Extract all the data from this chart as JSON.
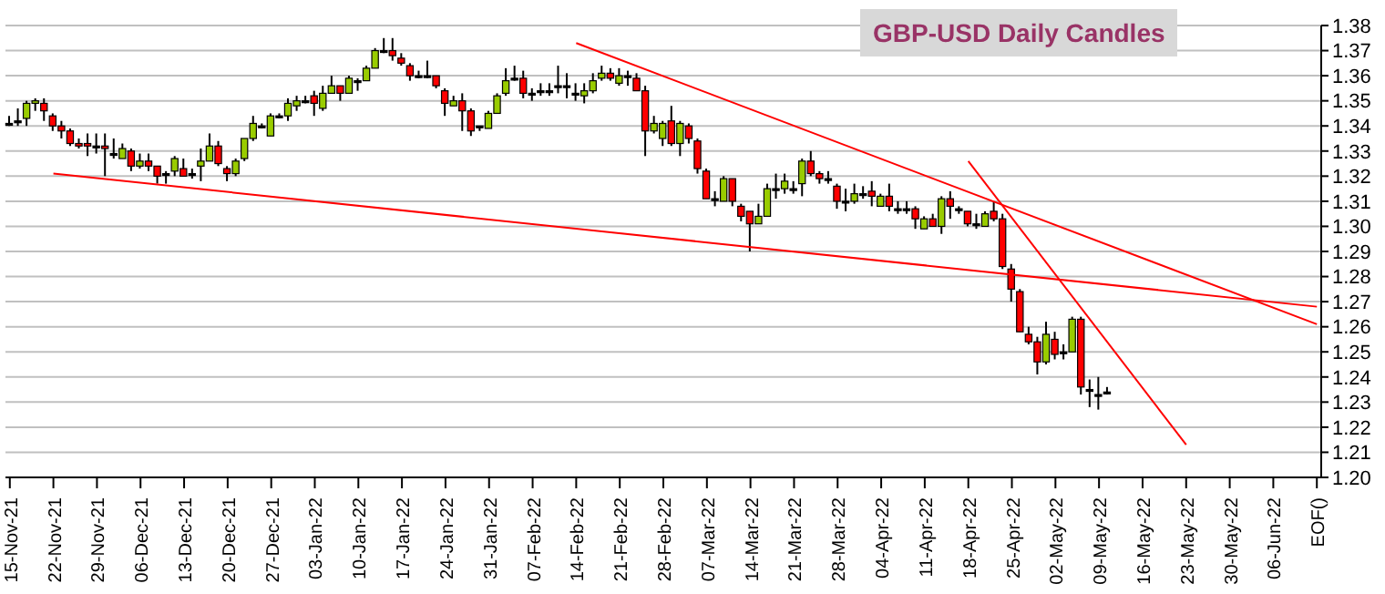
{
  "chart_data": {
    "type": "candlestick",
    "title": "GBP-USD Daily Candles",
    "categories": [
      "15-Nov-21",
      null,
      null,
      null,
      null,
      "22-Nov-21",
      null,
      null,
      null,
      null,
      "29-Nov-21",
      null,
      null,
      null,
      null,
      "06-Dec-21",
      null,
      null,
      null,
      null,
      "13-Dec-21",
      null,
      null,
      null,
      null,
      "20-Dec-21",
      null,
      null,
      null,
      null,
      "27-Dec-21",
      null,
      null,
      null,
      null,
      "03-Jan-22",
      null,
      null,
      null,
      null,
      "10-Jan-22",
      null,
      null,
      null,
      null,
      "17-Jan-22",
      null,
      null,
      null,
      null,
      "24-Jan-22",
      null,
      null,
      null,
      null,
      "31-Jan-22",
      null,
      null,
      null,
      null,
      "07-Feb-22",
      null,
      null,
      null,
      null,
      "14-Feb-22",
      null,
      null,
      null,
      null,
      "21-Feb-22",
      null,
      null,
      null,
      null,
      "28-Feb-22",
      null,
      null,
      null,
      null,
      "07-Mar-22",
      null,
      null,
      null,
      null,
      "14-Mar-22",
      null,
      null,
      null,
      null,
      "21-Mar-22",
      null,
      null,
      null,
      null,
      "28-Mar-22",
      null,
      null,
      null,
      null,
      "04-Apr-22",
      null,
      null,
      null,
      null,
      "11-Apr-22",
      null,
      null,
      null,
      null,
      "18-Apr-22",
      null,
      null,
      null,
      null,
      "25-Apr-22",
      null,
      null,
      null,
      null,
      "02-May-22",
      null,
      null,
      null,
      null,
      "09-May-22",
      null,
      null,
      null,
      null,
      "16-May-22",
      null,
      null,
      null,
      null,
      "23-May-22",
      null,
      null,
      null,
      null,
      "30-May-22",
      null,
      null,
      null,
      null,
      "06-Jun-22",
      null,
      null,
      null,
      null,
      "EOF()"
    ],
    "ohlc": [
      [
        1.341,
        1.344,
        1.34,
        1.341
      ],
      [
        1.342,
        1.347,
        1.34,
        1.342
      ],
      [
        1.343,
        1.35,
        1.34,
        1.349
      ],
      [
        1.349,
        1.351,
        1.346,
        1.35
      ],
      [
        1.349,
        1.351,
        1.342,
        1.346
      ],
      [
        1.344,
        1.345,
        1.338,
        1.34
      ],
      [
        1.34,
        1.342,
        1.335,
        1.338
      ],
      [
        1.338,
        1.339,
        1.332,
        1.333
      ],
      [
        1.333,
        1.335,
        1.331,
        1.332
      ],
      [
        1.333,
        1.337,
        1.328,
        1.332
      ],
      [
        1.332,
        1.337,
        1.329,
        1.332
      ],
      [
        1.332,
        1.337,
        1.32,
        1.331
      ],
      [
        1.329,
        1.335,
        1.327,
        1.329
      ],
      [
        1.327,
        1.333,
        1.327,
        1.331
      ],
      [
        1.33,
        1.331,
        1.322,
        1.324
      ],
      [
        1.324,
        1.329,
        1.323,
        1.326
      ],
      [
        1.326,
        1.329,
        1.322,
        1.324
      ],
      [
        1.324,
        1.324,
        1.317,
        1.32
      ],
      [
        1.321,
        1.322,
        1.317,
        1.321
      ],
      [
        1.322,
        1.328,
        1.32,
        1.327
      ],
      [
        1.323,
        1.327,
        1.32,
        1.32
      ],
      [
        1.321,
        1.323,
        1.319,
        1.321
      ],
      [
        1.324,
        1.331,
        1.318,
        1.326
      ],
      [
        1.326,
        1.337,
        1.326,
        1.332
      ],
      [
        1.332,
        1.334,
        1.324,
        1.325
      ],
      [
        1.323,
        1.324,
        1.318,
        1.321
      ],
      [
        1.321,
        1.327,
        1.32,
        1.326
      ],
      [
        1.327,
        1.335,
        1.326,
        1.335
      ],
      [
        1.335,
        1.344,
        1.334,
        1.341
      ],
      [
        1.34,
        1.341,
        1.339,
        1.34
      ],
      [
        1.336,
        1.345,
        1.336,
        1.344
      ],
      [
        1.344,
        1.345,
        1.343,
        1.344
      ],
      [
        1.344,
        1.351,
        1.342,
        1.349
      ],
      [
        1.348,
        1.352,
        1.346,
        1.35
      ],
      [
        1.35,
        1.352,
        1.349,
        1.35
      ],
      [
        1.352,
        1.354,
        1.344,
        1.349
      ],
      [
        1.347,
        1.356,
        1.346,
        1.353
      ],
      [
        1.353,
        1.36,
        1.353,
        1.356
      ],
      [
        1.356,
        1.356,
        1.35,
        1.353
      ],
      [
        1.353,
        1.36,
        1.353,
        1.359
      ],
      [
        1.358,
        1.359,
        1.354,
        1.358
      ],
      [
        1.358,
        1.364,
        1.358,
        1.363
      ],
      [
        1.363,
        1.371,
        1.363,
        1.37
      ],
      [
        1.37,
        1.375,
        1.369,
        1.37
      ],
      [
        1.37,
        1.375,
        1.366,
        1.368
      ],
      [
        1.367,
        1.369,
        1.364,
        1.365
      ],
      [
        1.364,
        1.365,
        1.358,
        1.36
      ],
      [
        1.36,
        1.362,
        1.359,
        1.36
      ],
      [
        1.36,
        1.366,
        1.359,
        1.36
      ],
      [
        1.36,
        1.36,
        1.355,
        1.356
      ],
      [
        1.354,
        1.355,
        1.344,
        1.349
      ],
      [
        1.348,
        1.352,
        1.348,
        1.35
      ],
      [
        1.35,
        1.353,
        1.338,
        1.346
      ],
      [
        1.346,
        1.347,
        1.336,
        1.338
      ],
      [
        1.34,
        1.34,
        1.338,
        1.34
      ],
      [
        1.339,
        1.346,
        1.339,
        1.345
      ],
      [
        1.345,
        1.353,
        1.345,
        1.352
      ],
      [
        1.353,
        1.363,
        1.352,
        1.358
      ],
      [
        1.359,
        1.364,
        1.358,
        1.359
      ],
      [
        1.359,
        1.362,
        1.351,
        1.353
      ],
      [
        1.353,
        1.355,
        1.35,
        1.353
      ],
      [
        1.354,
        1.357,
        1.352,
        1.354
      ],
      [
        1.354,
        1.357,
        1.352,
        1.354
      ],
      [
        1.356,
        1.364,
        1.353,
        1.356
      ],
      [
        1.356,
        1.361,
        1.351,
        1.356
      ],
      [
        1.353,
        1.357,
        1.35,
        1.353
      ],
      [
        1.352,
        1.357,
        1.349,
        1.354
      ],
      [
        1.354,
        1.361,
        1.353,
        1.358
      ],
      [
        1.359,
        1.364,
        1.358,
        1.361
      ],
      [
        1.361,
        1.363,
        1.358,
        1.359
      ],
      [
        1.357,
        1.363,
        1.356,
        1.36
      ],
      [
        1.36,
        1.362,
        1.356,
        1.36
      ],
      [
        1.359,
        1.361,
        1.354,
        1.354
      ],
      [
        1.354,
        1.356,
        1.328,
        1.338
      ],
      [
        1.338,
        1.344,
        1.337,
        1.341
      ],
      [
        1.335,
        1.342,
        1.332,
        1.341
      ],
      [
        1.342,
        1.348,
        1.332,
        1.333
      ],
      [
        1.333,
        1.342,
        1.328,
        1.341
      ],
      [
        1.34,
        1.341,
        1.333,
        1.335
      ],
      [
        1.334,
        1.335,
        1.321,
        1.323
      ],
      [
        1.322,
        1.323,
        1.311,
        1.311
      ],
      [
        1.311,
        1.314,
        1.308,
        1.311
      ],
      [
        1.31,
        1.32,
        1.31,
        1.319
      ],
      [
        1.319,
        1.319,
        1.308,
        1.31
      ],
      [
        1.308,
        1.309,
        1.302,
        1.304
      ],
      [
        1.306,
        1.306,
        1.29,
        1.301
      ],
      [
        1.301,
        1.309,
        1.301,
        1.304
      ],
      [
        1.304,
        1.317,
        1.304,
        1.315
      ],
      [
        1.315,
        1.321,
        1.311,
        1.315
      ],
      [
        1.315,
        1.321,
        1.313,
        1.318
      ],
      [
        1.315,
        1.318,
        1.313,
        1.315
      ],
      [
        1.317,
        1.327,
        1.312,
        1.326
      ],
      [
        1.326,
        1.33,
        1.32,
        1.321
      ],
      [
        1.321,
        1.322,
        1.317,
        1.319
      ],
      [
        1.319,
        1.322,
        1.317,
        1.319
      ],
      [
        1.316,
        1.317,
        1.307,
        1.31
      ],
      [
        1.31,
        1.315,
        1.306,
        1.31
      ],
      [
        1.31,
        1.317,
        1.309,
        1.313
      ],
      [
        1.313,
        1.316,
        1.311,
        1.313
      ],
      [
        1.314,
        1.318,
        1.308,
        1.312
      ],
      [
        1.308,
        1.313,
        1.308,
        1.312
      ],
      [
        1.312,
        1.317,
        1.306,
        1.308
      ],
      [
        1.307,
        1.31,
        1.305,
        1.307
      ],
      [
        1.307,
        1.31,
        1.305,
        1.307
      ],
      [
        1.307,
        1.308,
        1.299,
        1.303
      ],
      [
        1.299,
        1.304,
        1.299,
        1.303
      ],
      [
        1.303,
        1.305,
        1.3,
        1.3
      ],
      [
        1.3,
        1.312,
        1.297,
        1.311
      ],
      [
        1.311,
        1.314,
        1.303,
        1.308
      ],
      [
        1.307,
        1.308,
        1.305,
        1.307
      ],
      [
        1.306,
        1.306,
        1.3,
        1.301
      ],
      [
        1.301,
        1.305,
        1.299,
        1.301
      ],
      [
        1.3,
        1.306,
        1.3,
        1.305
      ],
      [
        1.306,
        1.31,
        1.302,
        1.303
      ],
      [
        1.303,
        1.305,
        1.283,
        1.284
      ],
      [
        1.283,
        1.285,
        1.27,
        1.275
      ],
      [
        1.274,
        1.275,
        1.258,
        1.258
      ],
      [
        1.257,
        1.26,
        1.253,
        1.254
      ],
      [
        1.254,
        1.256,
        1.241,
        1.246
      ],
      [
        1.246,
        1.262,
        1.245,
        1.257
      ],
      [
        1.255,
        1.258,
        1.247,
        1.249
      ],
      [
        1.25,
        1.253,
        1.247,
        1.25
      ],
      [
        1.25,
        1.264,
        1.25,
        1.263
      ],
      [
        1.263,
        1.264,
        1.233,
        1.236
      ],
      [
        1.235,
        1.239,
        1.228,
        1.235
      ],
      [
        1.233,
        1.24,
        1.227,
        1.233
      ],
      [
        1.234,
        1.236,
        1.233,
        1.234
      ],
      null,
      null,
      null,
      null,
      null,
      null,
      null,
      null,
      null,
      null,
      null,
      null,
      null,
      null,
      null,
      null,
      null,
      null,
      null,
      null,
      null,
      null,
      null,
      null
    ],
    "colors": [
      "#000000",
      "#000000",
      "#99cc00",
      "#99cc00",
      "#ff0000",
      "#ff0000",
      "#ff0000",
      "#ff0000",
      "#ff0000",
      "#ff0000",
      "#000000",
      "#ff0000",
      "#000000",
      "#99cc00",
      "#ff0000",
      "#99cc00",
      "#ff0000",
      "#ff0000",
      "#000000",
      "#99cc00",
      "#ff0000",
      "#000000",
      "#99cc00",
      "#99cc00",
      "#ff0000",
      "#ff0000",
      "#99cc00",
      "#99cc00",
      "#99cc00",
      "#000000",
      "#99cc00",
      "#000000",
      "#99cc00",
      "#99cc00",
      "#000000",
      "#ff0000",
      "#99cc00",
      "#99cc00",
      "#ff0000",
      "#99cc00",
      "#000000",
      "#99cc00",
      "#99cc00",
      "#000000",
      "#ff0000",
      "#ff0000",
      "#ff0000",
      "#000000",
      "#000000",
      "#ff0000",
      "#ff0000",
      "#99cc00",
      "#ff0000",
      "#ff0000",
      "#000000",
      "#99cc00",
      "#99cc00",
      "#99cc00",
      "#000000",
      "#ff0000",
      "#000000",
      "#000000",
      "#000000",
      "#000000",
      "#000000",
      "#000000",
      "#99cc00",
      "#99cc00",
      "#99cc00",
      "#ff0000",
      "#99cc00",
      "#000000",
      "#ff0000",
      "#ff0000",
      "#99cc00",
      "#99cc00",
      "#ff0000",
      "#99cc00",
      "#ff0000",
      "#ff0000",
      "#ff0000",
      "#000000",
      "#99cc00",
      "#ff0000",
      "#ff0000",
      "#ff0000",
      "#99cc00",
      "#99cc00",
      "#000000",
      "#99cc00",
      "#000000",
      "#99cc00",
      "#ff0000",
      "#ff0000",
      "#000000",
      "#ff0000",
      "#000000",
      "#99cc00",
      "#000000",
      "#ff0000",
      "#99cc00",
      "#ff0000",
      "#000000",
      "#000000",
      "#ff0000",
      "#99cc00",
      "#ff0000",
      "#99cc00",
      "#ff0000",
      "#000000",
      "#ff0000",
      "#000000",
      "#99cc00",
      "#ff0000",
      "#ff0000",
      "#ff0000",
      "#ff0000",
      "#ff0000",
      "#ff0000",
      "#99cc00",
      "#ff0000",
      "#000000",
      "#99cc00",
      "#ff0000",
      "#000000",
      "#000000",
      "#000000",
      null,
      null,
      null,
      null,
      null,
      null,
      null,
      null,
      null,
      null,
      null,
      null,
      null,
      null,
      null,
      null,
      null,
      null,
      null,
      null,
      null,
      null,
      null,
      null
    ],
    "series": [
      {
        "type": "line",
        "x": [
          "22-Nov-21",
          "EOF()"
        ],
        "values": [
          1.321,
          1.268
        ],
        "color": "#ff0000"
      },
      {
        "type": "line",
        "x": [
          "14-Feb-22",
          "EOF()"
        ],
        "values": [
          1.373,
          1.261
        ],
        "color": "#ff0000"
      },
      {
        "type": "line",
        "x": [
          "18-Apr-22",
          "23-May-22"
        ],
        "values": [
          1.326,
          1.213
        ],
        "color": "#ff0000"
      }
    ],
    "ylim": [
      1.2,
      1.38
    ],
    "yticks": [
      {
        "value": 1.2,
        "label": "1.20"
      },
      1.21,
      1.22,
      1.23,
      1.24,
      1.25,
      1.26,
      1.27,
      1.28,
      1.29,
      {
        "value": 1.3,
        "label": "1.30"
      },
      1.31,
      1.32,
      1.33,
      1.34,
      1.35,
      1.36,
      1.37,
      1.38
    ],
    "grid": "y"
  }
}
